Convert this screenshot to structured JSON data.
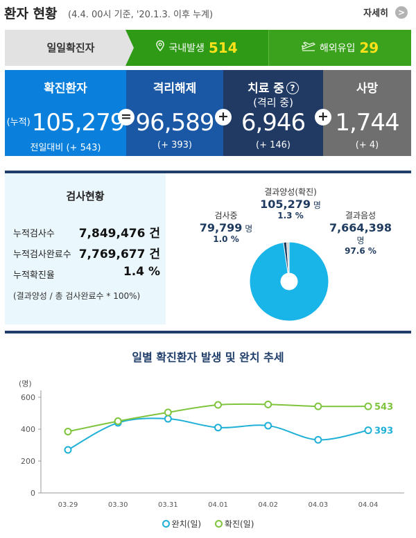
{
  "header": {
    "title": "환자 현황",
    "subtitle": "(4.4. 00시 기준, '20.1.3. 이후 누계)",
    "more_label": "자세히",
    "more_icon": "chevron-right-icon"
  },
  "daily": {
    "label": "일일확진자",
    "domestic": {
      "icon": "location-pin-icon",
      "label": "국내발생",
      "value": "514"
    },
    "overseas": {
      "icon": "airplane-icon",
      "label": "해외유입",
      "value": "29"
    }
  },
  "stats": {
    "confirmed": {
      "title": "확진환자",
      "prefix": "(누적)",
      "value": "105,279",
      "delta": "전일대비 (+ 543)"
    },
    "released": {
      "title": "격리해제",
      "value": "96,589",
      "delta": "(+ 393)"
    },
    "treating": {
      "title": "치료 중",
      "help": "?",
      "title2": "(격리 중)",
      "value": "6,946",
      "delta": "(+ 146)"
    },
    "deaths": {
      "title": "사망",
      "value": "1,744",
      "delta": "(+ 4)"
    },
    "op_equals": "=",
    "op_plus": "+"
  },
  "tests": {
    "title": "검사현황",
    "rows": [
      {
        "label": "누적검사수",
        "value": "7,849,476 건"
      },
      {
        "label": "누적검사완료수",
        "value": "7,769,677 건"
      },
      {
        "label": "누적확진율",
        "value": "1.4 %"
      }
    ],
    "note": "(결과양성 / 총 검사완료수 * 100%)",
    "pie": {
      "positive": {
        "label": "결과양성(확진)",
        "value": "105,279",
        "unit": "명",
        "pct": "1.3 %",
        "fraction": 0.013,
        "color": "#1e3a5f"
      },
      "testing": {
        "label": "검사중",
        "value": "79,799",
        "unit": "명",
        "pct": "1.0 %",
        "fraction": 0.01,
        "color": "#c9c9c9"
      },
      "negative": {
        "label": "결과음성",
        "value": "7,664,398",
        "unit": "명",
        "pct": "97.6 %",
        "fraction": 0.976,
        "color": "#19b4e8"
      }
    }
  },
  "chart_data": {
    "type": "line",
    "title": "일별 확진환자 발생 및 완치 추세",
    "ylabel": "(명)",
    "ylim": [
      0,
      600
    ],
    "yticks": [
      "0",
      "200",
      "400",
      "600"
    ],
    "categories": [
      "03.29",
      "03.30",
      "03.31",
      "04.01",
      "04.02",
      "04.03",
      "04.04"
    ],
    "series": [
      {
        "name": "완치(일)",
        "color": "#1eb0d6",
        "values": [
          270,
          440,
          465,
          410,
          422,
          333,
          393
        ],
        "end_label": "393"
      },
      {
        "name": "확진(일)",
        "color": "#7fc43d",
        "values": [
          385,
          450,
          505,
          552,
          555,
          543,
          543
        ],
        "end_label": "543"
      }
    ],
    "grid": false,
    "legend": "bottom"
  }
}
